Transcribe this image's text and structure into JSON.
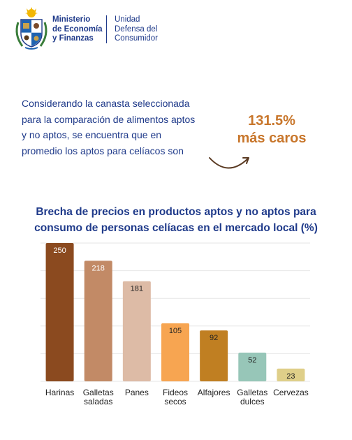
{
  "header": {
    "ministry_lines": [
      "Ministerio",
      "de Economía",
      "y Finanzas"
    ],
    "unit_lines": [
      "Unidad",
      "Defensa del",
      "Consumidor"
    ]
  },
  "intro": {
    "lines": [
      "Considerando la canasta seleccionada",
      "para la comparación de alimentos aptos",
      "y no aptos, se encuentra que en",
      "promedio los aptos para celíacos son"
    ]
  },
  "highlight": {
    "value": "131.5%",
    "text": "más caros",
    "color": "#c8762b"
  },
  "colors": {
    "title": "#1f3a8a",
    "gridline": "#e6e6e6"
  },
  "chart_data": {
    "type": "bar",
    "title_lines": [
      "Brecha de precios en productos aptos y no aptos para",
      "consumo de personas celíacas en el mercado local (%)"
    ],
    "categories": [
      [
        "Harinas"
      ],
      [
        "Galletas",
        "saladas"
      ],
      [
        "Panes"
      ],
      [
        "Fideos",
        "secos"
      ],
      [
        "Alfajores"
      ],
      [
        "Galletas",
        "dulces"
      ],
      [
        "Cervezas"
      ]
    ],
    "values": [
      250,
      218,
      181,
      105,
      92,
      52,
      23
    ],
    "value_labels": [
      "250",
      "218",
      "181",
      "105",
      "92",
      "52",
      "23"
    ],
    "colors": [
      "#8b4a1f",
      "#c28a66",
      "#ddbba6",
      "#f7a551",
      "#c07f22",
      "#97c6b8",
      "#dfcf89"
    ],
    "label_colors": [
      "#ffffff",
      "#ffffff",
      "#222222",
      "#222222",
      "#222222",
      "#222222",
      "#222222"
    ],
    "ylim": [
      0,
      250
    ],
    "grid": true,
    "xlabel": "",
    "ylabel": ""
  }
}
